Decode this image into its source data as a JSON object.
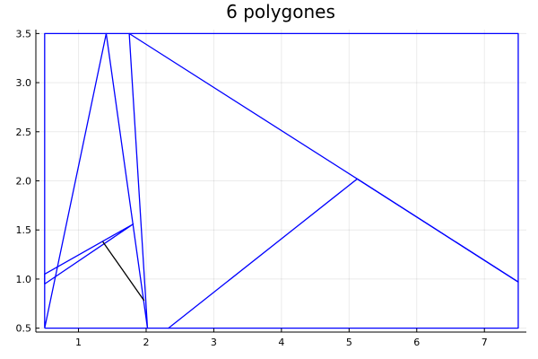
{
  "chart_data": {
    "type": "line",
    "title": "6 polygones",
    "xlabel": "",
    "ylabel": "",
    "xlim": [
      0.37,
      7.62
    ],
    "ylim": [
      0.46,
      3.54
    ],
    "xticks": [
      1,
      2,
      3,
      4,
      5,
      6,
      7
    ],
    "xtick_labels": [
      "1",
      "2",
      "3",
      "4",
      "5",
      "6",
      "7"
    ],
    "yticks": [
      0.5,
      1.0,
      1.5,
      2.0,
      2.5,
      3.0,
      3.5
    ],
    "ytick_labels": [
      "0.5",
      "1.0",
      "1.5",
      "2.0",
      "2.5",
      "3.0",
      "3.5"
    ],
    "grid": true,
    "legend": "none",
    "colors": {
      "polygon": "#0000ff",
      "segment": "#000000"
    },
    "series": [
      {
        "color": "#0000ff",
        "x": [
          0.5,
          0.5,
          1.41,
          0.5
        ],
        "y": [
          0.5,
          3.5,
          3.5,
          0.5
        ]
      },
      {
        "color": "#0000ff",
        "x": [
          1.41,
          1.75,
          2.02,
          1.41
        ],
        "y": [
          3.5,
          3.5,
          0.5,
          3.5
        ]
      },
      {
        "color": "#0000ff",
        "x": [
          1.75,
          7.5,
          7.5,
          5.12,
          1.75
        ],
        "y": [
          3.5,
          3.5,
          0.97,
          2.02,
          3.5
        ]
      },
      {
        "color": "#0000ff",
        "x": [
          5.12,
          7.5,
          7.5,
          2.33,
          5.12
        ],
        "y": [
          2.02,
          0.97,
          0.5,
          0.5,
          2.02
        ]
      },
      {
        "color": "#0000ff",
        "x": [
          0.5,
          0.5,
          1.81,
          0.5
        ],
        "y": [
          0.95,
          1.05,
          1.56,
          0.95
        ]
      },
      {
        "color": "#0000ff",
        "x": [
          0.5,
          2.02,
          2.33,
          0.5
        ],
        "y": [
          0.5,
          0.5,
          0.5,
          0.5
        ]
      },
      {
        "color": "#000000",
        "x": [
          1.36,
          1.97
        ],
        "y": [
          1.38,
          0.78
        ]
      }
    ]
  }
}
